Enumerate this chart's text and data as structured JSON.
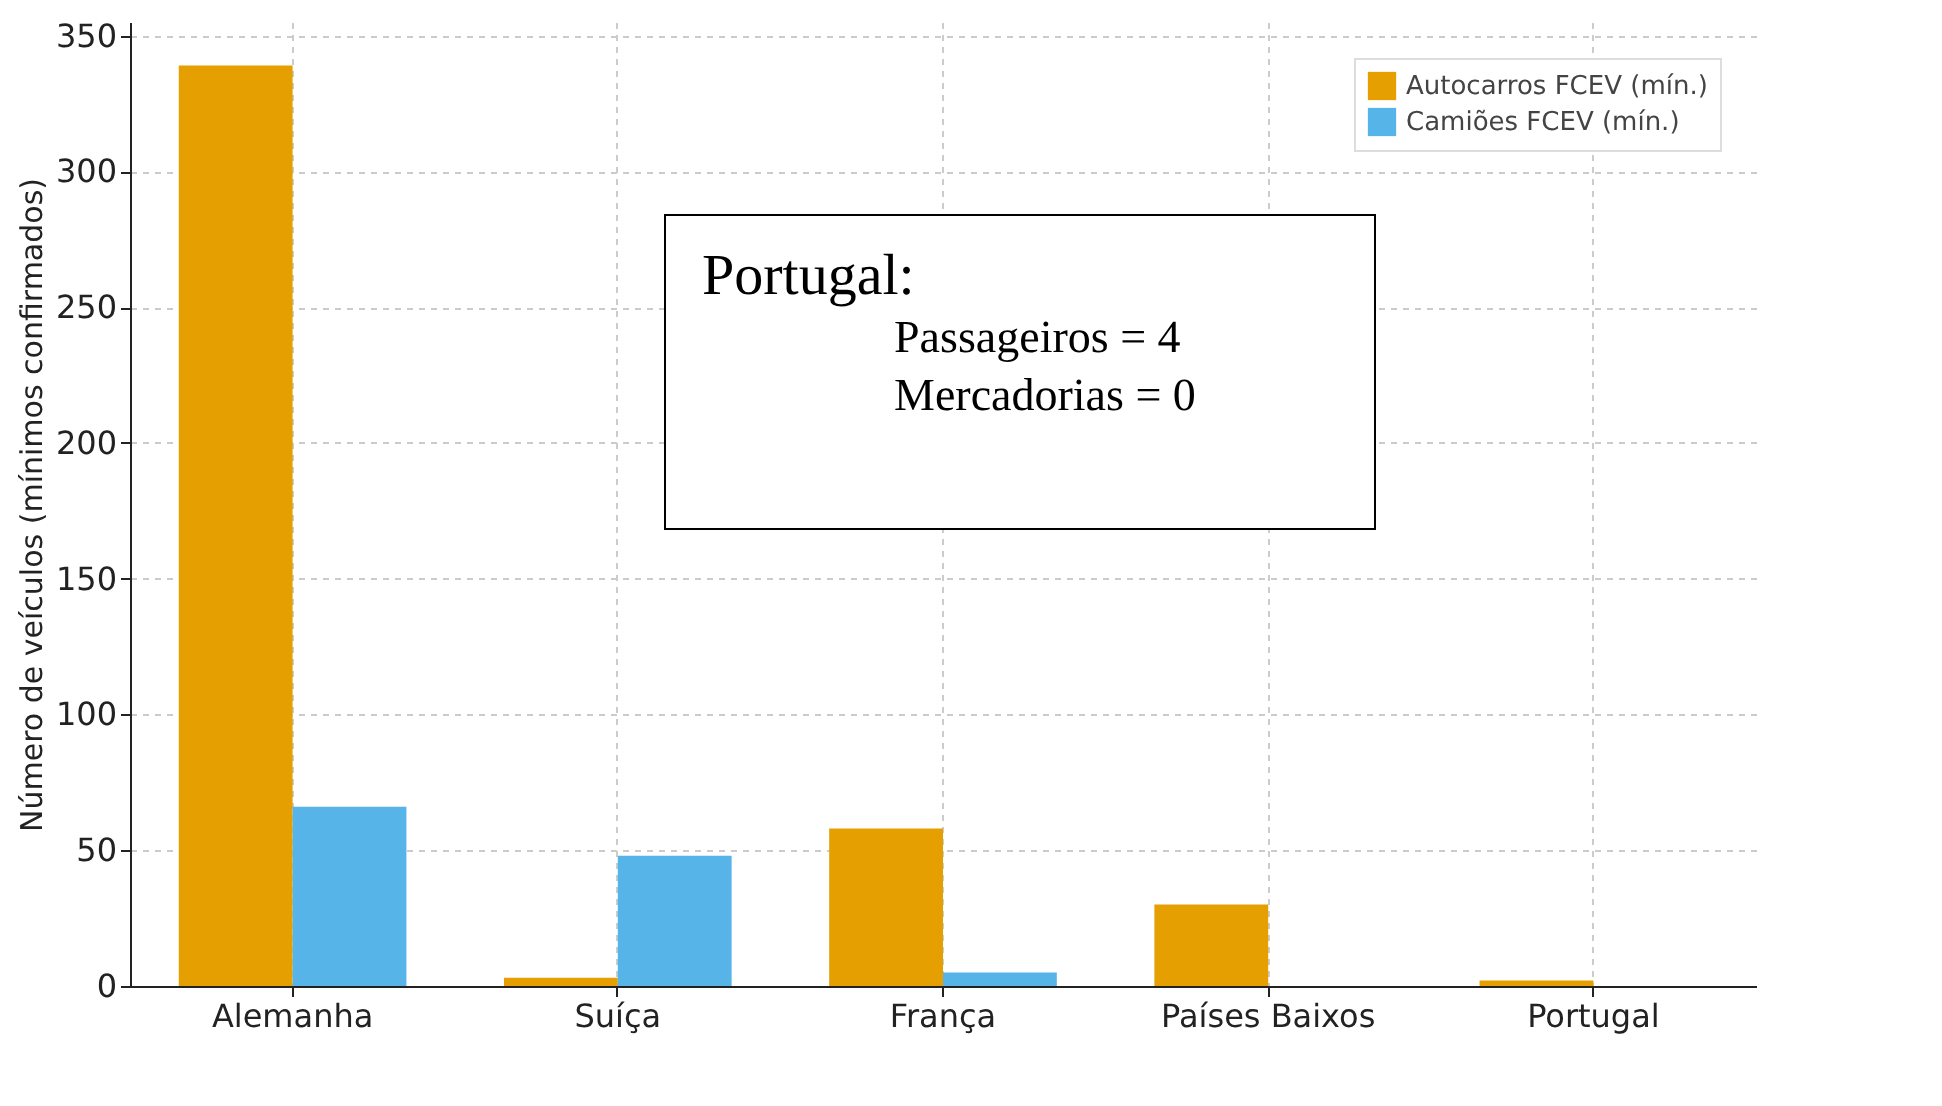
{
  "chart_data": {
    "type": "bar",
    "ylabel": "Número de veículos (mínimos confirmados)",
    "categories": [
      "Alemanha",
      "Suíça",
      "França",
      "Países Baixos",
      "Portugal"
    ],
    "series": [
      {
        "name": "Autocarros FCEV (mín.)",
        "color": "#e69f00",
        "values": [
          339,
          3,
          58,
          30,
          2
        ]
      },
      {
        "name": "Camiões FCEV (mín.)",
        "color": "#56b4e9",
        "values": [
          66,
          48,
          5,
          0,
          0
        ]
      }
    ],
    "ylim": [
      0,
      355
    ],
    "yticks": [
      0,
      50,
      100,
      150,
      200,
      250,
      300,
      350
    ],
    "grid": true,
    "legend": "top right",
    "annotations": [
      "Portugal:",
      "Passageiros = 4",
      "Mercadorias = 0"
    ]
  }
}
